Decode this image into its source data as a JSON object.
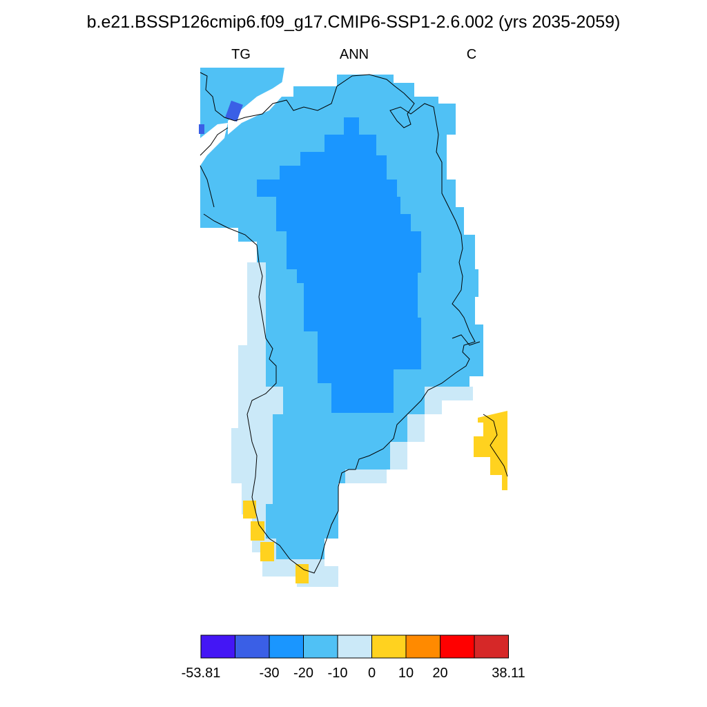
{
  "title": "b.e21.BSSP126cmip6.f09_g17.CMIP6-SSP1-2.6.002 (yrs 2035-2059)",
  "subtitle": {
    "left": "TG",
    "center": "ANN",
    "right": "C"
  },
  "colors": {
    "c1": "#4416f5",
    "c2": "#3a5fe6",
    "c3": "#1a96ff",
    "c4": "#50c1f5",
    "c5": "#cbe9f8",
    "c6": "#ffd21f",
    "c7": "#ff8a00",
    "c8": "#ff0000",
    "c9": "#d62828"
  },
  "colorbar": {
    "colors": [
      "#4416f5",
      "#3a5fe6",
      "#1a96ff",
      "#50c1f5",
      "#cbe9f8",
      "#ffd21f",
      "#ff8a00",
      "#ff0000",
      "#d62828"
    ],
    "labels": [
      "-53.81",
      "",
      "-30",
      "-20",
      "-10",
      "0",
      "10",
      "20",
      "",
      "38.11"
    ]
  }
}
